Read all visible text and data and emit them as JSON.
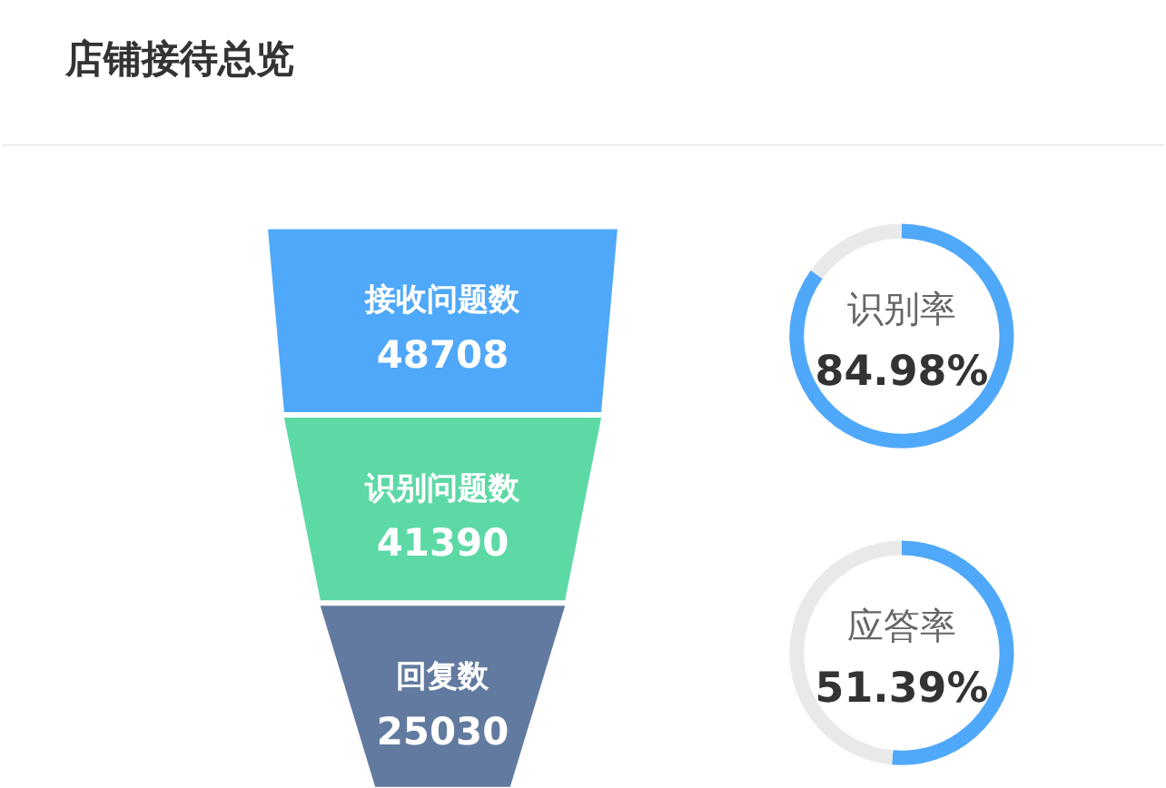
{
  "chart_data": [
    {
      "type": "other",
      "title": "店铺接待总览",
      "categories": [
        "接收问题数",
        "识别问题数",
        "回复数"
      ],
      "values": [
        48708,
        41390,
        25030
      ],
      "colors": [
        "#4fa8f9",
        "#5dd9a5",
        "#627a9f"
      ],
      "data_labels": true
    },
    {
      "type": "donut",
      "title": "识别率",
      "categories": [
        null,
        null
      ],
      "values": [
        84.98,
        15.02
      ],
      "colors": [
        "#4fa8f9",
        "#e9e9e9"
      ],
      "value_labels": [
        "84.98%",
        null
      ]
    },
    {
      "type": "donut",
      "title": "应答率",
      "categories": [
        null,
        null
      ],
      "values": [
        51.39,
        48.61
      ],
      "colors": [
        "#4fa8f9",
        "#e9e9e9"
      ],
      "value_labels": [
        "51.39%",
        null
      ]
    }
  ]
}
